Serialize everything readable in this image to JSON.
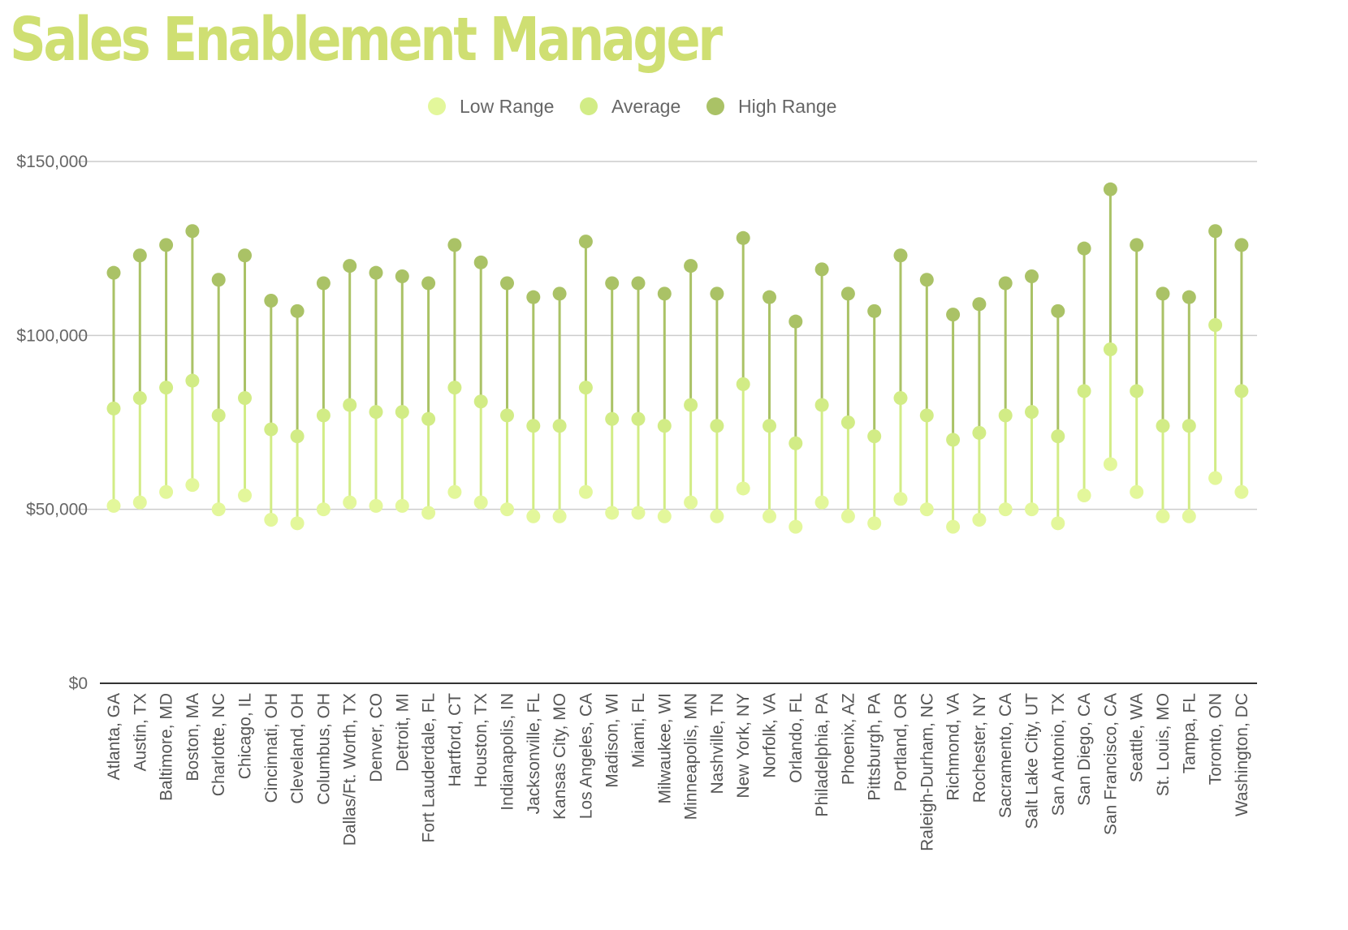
{
  "chart_data": {
    "type": "scatter",
    "title": "Sales Enablement Manager",
    "xlabel": "",
    "ylabel": "",
    "ylim": [
      0,
      150000
    ],
    "yticks": [
      0,
      50000,
      100000,
      150000
    ],
    "ytick_labels": [
      "$0",
      "$50,000",
      "$100,000",
      "$150,000"
    ],
    "grid": true,
    "legend_position": "top-center",
    "colors": {
      "low": "#e3f79b",
      "average": "#d2ec86",
      "high": "#aac266",
      "title": "#cfdf72"
    },
    "categories": [
      "Atlanta, GA",
      "Austin, TX",
      "Baltimore, MD",
      "Boston, MA",
      "Charlotte, NC",
      "Chicago, IL",
      "Cincinnati, OH",
      "Cleveland, OH",
      "Columbus, OH",
      "Dallas/Ft. Worth, TX",
      "Denver, CO",
      "Detroit, MI",
      "Fort Lauderdale, FL",
      "Hartford, CT",
      "Houston, TX",
      "Indianapolis, IN",
      "Jacksonville, FL",
      "Kansas City, MO",
      "Los Angeles, CA",
      "Madison, WI",
      "Miami, FL",
      "Milwaukee, WI",
      "Minneapolis, MN",
      "Nashville, TN",
      "New York, NY",
      "Norfolk, VA",
      "Orlando, FL",
      "Philadelphia, PA",
      "Phoenix, AZ",
      "Pittsburgh, PA",
      "Portland, OR",
      "Raleigh-Durham, NC",
      "Richmond, VA",
      "Rochester, NY",
      "Sacramento, CA",
      "Salt Lake City, UT",
      "San Antonio, TX",
      "San Diego, CA",
      "San Francisco, CA",
      "Seattle, WA",
      "St. Louis, MO",
      "Tampa, FL",
      "Toronto, ON",
      "Washington, DC"
    ],
    "series": [
      {
        "name": "Low Range",
        "values": [
          51000,
          52000,
          55000,
          57000,
          50000,
          54000,
          47000,
          46000,
          50000,
          52000,
          51000,
          51000,
          49000,
          55000,
          52000,
          50000,
          48000,
          48000,
          55000,
          49000,
          49000,
          48000,
          52000,
          48000,
          56000,
          48000,
          45000,
          52000,
          48000,
          46000,
          53000,
          50000,
          45000,
          47000,
          50000,
          50000,
          46000,
          54000,
          63000,
          55000,
          48000,
          48000,
          59000,
          55000
        ]
      },
      {
        "name": "Average",
        "values": [
          79000,
          82000,
          85000,
          87000,
          77000,
          82000,
          73000,
          71000,
          77000,
          80000,
          78000,
          78000,
          76000,
          85000,
          81000,
          77000,
          74000,
          74000,
          85000,
          76000,
          76000,
          74000,
          80000,
          74000,
          86000,
          74000,
          69000,
          80000,
          75000,
          71000,
          82000,
          77000,
          70000,
          72000,
          77000,
          78000,
          71000,
          84000,
          96000,
          84000,
          74000,
          74000,
          103000,
          84000
        ]
      },
      {
        "name": "High Range",
        "values": [
          118000,
          123000,
          126000,
          130000,
          116000,
          123000,
          110000,
          107000,
          115000,
          120000,
          118000,
          117000,
          115000,
          126000,
          121000,
          115000,
          111000,
          112000,
          127000,
          115000,
          115000,
          112000,
          120000,
          112000,
          128000,
          111000,
          104000,
          119000,
          112000,
          107000,
          123000,
          116000,
          106000,
          109000,
          115000,
          117000,
          107000,
          125000,
          142000,
          126000,
          112000,
          111000,
          130000,
          126000
        ]
      }
    ]
  }
}
